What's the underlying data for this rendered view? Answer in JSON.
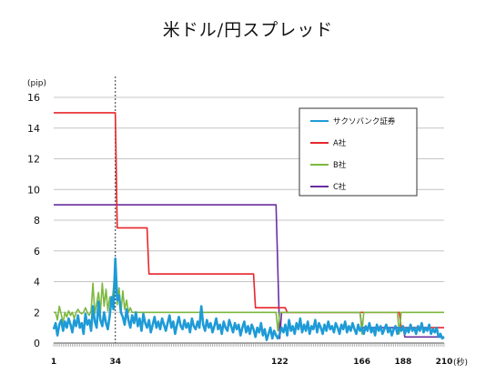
{
  "chart_data": {
    "type": "line",
    "title": "米ドル/円スプレッド",
    "ylabel": "(pip)",
    "xlabel": "(秒)",
    "ylim": [
      0,
      16
    ],
    "xlim": [
      1,
      210
    ],
    "yticks": [
      0,
      2,
      4,
      6,
      8,
      10,
      12,
      14,
      16
    ],
    "xticks": [
      1,
      34,
      122,
      166,
      188,
      210
    ],
    "marker_line_x": 34,
    "grid": true,
    "legend_position": "top-right",
    "series": [
      {
        "name": "サクソバンク証券",
        "color": "#1e9bd7",
        "points": [
          [
            1,
            0.9
          ],
          [
            2,
            1.3
          ],
          [
            3,
            0.5
          ],
          [
            4,
            1.2
          ],
          [
            5,
            1.5
          ],
          [
            6,
            0.8
          ],
          [
            7,
            1.4
          ],
          [
            8,
            1.0
          ],
          [
            9,
            1.6
          ],
          [
            10,
            1.2
          ],
          [
            11,
            0.7
          ],
          [
            12,
            1.5
          ],
          [
            13,
            1.1
          ],
          [
            14,
            1.8
          ],
          [
            15,
            1.0
          ],
          [
            16,
            1.3
          ],
          [
            17,
            0.6
          ],
          [
            18,
            1.9
          ],
          [
            19,
            1.2
          ],
          [
            20,
            1.5
          ],
          [
            21,
            0.8
          ],
          [
            22,
            2.4
          ],
          [
            23,
            1.4
          ],
          [
            24,
            1.0
          ],
          [
            25,
            2.7
          ],
          [
            26,
            1.5
          ],
          [
            27,
            1.1
          ],
          [
            28,
            2.0
          ],
          [
            29,
            1.3
          ],
          [
            30,
            0.9
          ],
          [
            31,
            1.8
          ],
          [
            32,
            3.0
          ],
          [
            33,
            2.2
          ],
          [
            34,
            5.5
          ],
          [
            35,
            2.8
          ],
          [
            36,
            3.1
          ],
          [
            37,
            2.0
          ],
          [
            38,
            1.7
          ],
          [
            39,
            1.2
          ],
          [
            40,
            2.2
          ],
          [
            41,
            1.5
          ],
          [
            42,
            1.0
          ],
          [
            43,
            1.8
          ],
          [
            44,
            1.3
          ],
          [
            45,
            2.0
          ],
          [
            46,
            1.1
          ],
          [
            47,
            1.6
          ],
          [
            48,
            0.8
          ],
          [
            49,
            1.9
          ],
          [
            50,
            1.3
          ],
          [
            51,
            1.0
          ],
          [
            52,
            1.5
          ],
          [
            53,
            0.7
          ],
          [
            54,
            1.2
          ],
          [
            55,
            1.7
          ],
          [
            56,
            1.0
          ],
          [
            57,
            1.4
          ],
          [
            58,
            0.9
          ],
          [
            59,
            1.6
          ],
          [
            60,
            1.2
          ],
          [
            61,
            0.8
          ],
          [
            62,
            1.3
          ],
          [
            63,
            1.8
          ],
          [
            64,
            1.0
          ],
          [
            65,
            1.4
          ],
          [
            66,
            0.6
          ],
          [
            67,
            1.2
          ],
          [
            68,
            1.7
          ],
          [
            69,
            1.1
          ],
          [
            70,
            0.9
          ],
          [
            71,
            1.5
          ],
          [
            72,
            1.0
          ],
          [
            73,
            1.3
          ],
          [
            74,
            0.7
          ],
          [
            75,
            1.6
          ],
          [
            76,
            1.1
          ],
          [
            77,
            0.9
          ],
          [
            78,
            1.4
          ],
          [
            79,
            1.0
          ],
          [
            80,
            2.4
          ],
          [
            81,
            1.2
          ],
          [
            82,
            0.8
          ],
          [
            83,
            1.5
          ],
          [
            84,
            1.0
          ],
          [
            85,
            1.3
          ],
          [
            86,
            0.7
          ],
          [
            87,
            1.1
          ],
          [
            88,
            1.6
          ],
          [
            89,
            0.9
          ],
          [
            90,
            1.2
          ],
          [
            91,
            0.6
          ],
          [
            92,
            1.4
          ],
          [
            93,
            1.0
          ],
          [
            94,
            0.8
          ],
          [
            95,
            1.5
          ],
          [
            96,
            1.1
          ],
          [
            97,
            0.7
          ],
          [
            98,
            1.3
          ],
          [
            99,
            0.9
          ],
          [
            100,
            1.2
          ],
          [
            101,
            0.5
          ],
          [
            102,
            1.0
          ],
          [
            103,
            1.4
          ],
          [
            104,
            0.7
          ],
          [
            105,
            1.1
          ],
          [
            106,
            0.6
          ],
          [
            107,
            1.2
          ],
          [
            108,
            0.9
          ],
          [
            109,
            0.4
          ],
          [
            110,
            1.0
          ],
          [
            111,
            0.7
          ],
          [
            112,
            1.3
          ],
          [
            113,
            0.5
          ],
          [
            114,
            0.9
          ],
          [
            115,
            0.2
          ],
          [
            116,
            0.6
          ],
          [
            117,
            1.0
          ],
          [
            118,
            0.3
          ],
          [
            119,
            0.8
          ],
          [
            120,
            0.5
          ],
          [
            121,
            0.3
          ],
          [
            122,
            0.6
          ],
          [
            123,
            1.0
          ],
          [
            124,
            0.7
          ],
          [
            125,
            1.2
          ],
          [
            126,
            0.5
          ],
          [
            127,
            1.5
          ],
          [
            128,
            0.8
          ],
          [
            129,
            1.1
          ],
          [
            130,
            0.6
          ],
          [
            131,
            1.3
          ],
          [
            132,
            0.9
          ],
          [
            133,
            1.6
          ],
          [
            134,
            0.7
          ],
          [
            135,
            1.2
          ],
          [
            136,
            0.8
          ],
          [
            137,
            1.4
          ],
          [
            138,
            0.6
          ],
          [
            139,
            1.1
          ],
          [
            140,
            0.9
          ],
          [
            141,
            1.5
          ],
          [
            142,
            0.7
          ],
          [
            143,
            1.3
          ],
          [
            144,
            1.0
          ],
          [
            145,
            0.6
          ],
          [
            146,
            1.2
          ],
          [
            147,
            0.8
          ],
          [
            148,
            1.4
          ],
          [
            149,
            0.9
          ],
          [
            150,
            1.1
          ],
          [
            151,
            0.7
          ],
          [
            152,
            1.3
          ],
          [
            153,
            1.0
          ],
          [
            154,
            0.6
          ],
          [
            155,
            1.2
          ],
          [
            156,
            0.9
          ],
          [
            157,
            1.4
          ],
          [
            158,
            0.7
          ],
          [
            159,
            1.1
          ],
          [
            160,
            0.8
          ],
          [
            161,
            1.3
          ],
          [
            162,
            0.9
          ],
          [
            163,
            0.6
          ],
          [
            164,
            1.2
          ],
          [
            165,
            0.8
          ],
          [
            166,
            1.0
          ],
          [
            167,
            0.6
          ],
          [
            168,
            1.1
          ],
          [
            169,
            0.8
          ],
          [
            170,
            1.3
          ],
          [
            171,
            0.7
          ],
          [
            172,
            1.0
          ],
          [
            173,
            0.5
          ],
          [
            174,
            1.2
          ],
          [
            175,
            0.8
          ],
          [
            176,
            1.1
          ],
          [
            177,
            0.6
          ],
          [
            178,
            0.9
          ],
          [
            179,
            1.2
          ],
          [
            180,
            0.7
          ],
          [
            181,
            1.0
          ],
          [
            182,
            0.5
          ],
          [
            183,
            0.9
          ],
          [
            184,
            1.1
          ],
          [
            185,
            0.6
          ],
          [
            186,
            1.0
          ],
          [
            187,
            0.8
          ],
          [
            188,
            1.1
          ],
          [
            189,
            0.6
          ],
          [
            190,
            1.0
          ],
          [
            191,
            0.7
          ],
          [
            192,
            1.2
          ],
          [
            193,
            0.8
          ],
          [
            194,
            1.0
          ],
          [
            195,
            0.6
          ],
          [
            196,
            1.1
          ],
          [
            197,
            0.8
          ],
          [
            198,
            1.3
          ],
          [
            199,
            0.7
          ],
          [
            200,
            1.0
          ],
          [
            201,
            0.8
          ],
          [
            202,
            1.2
          ],
          [
            203,
            0.6
          ],
          [
            204,
            0.9
          ],
          [
            205,
            0.7
          ],
          [
            206,
            1.0
          ],
          [
            207,
            0.4
          ],
          [
            208,
            0.6
          ],
          [
            209,
            0.3
          ],
          [
            210,
            0.4
          ]
        ]
      },
      {
        "name": "A社",
        "color": "#e8262b",
        "points": [
          [
            1,
            15
          ],
          [
            34,
            15
          ],
          [
            35,
            7.5
          ],
          [
            51,
            7.5
          ],
          [
            52,
            4.5
          ],
          [
            108,
            4.5
          ],
          [
            109,
            2.3
          ],
          [
            125,
            2.3
          ],
          [
            126,
            2
          ],
          [
            186,
            2
          ],
          [
            187,
            1
          ],
          [
            210,
            1
          ]
        ]
      },
      {
        "name": "B社",
        "color": "#7cb83e",
        "points": [
          [
            1,
            2
          ],
          [
            2,
            2
          ],
          [
            3,
            1.5
          ],
          [
            4,
            2.4
          ],
          [
            5,
            1.9
          ],
          [
            6,
            1.3
          ],
          [
            7,
            2.0
          ],
          [
            8,
            1.7
          ],
          [
            9,
            2.1
          ],
          [
            10,
            1.8
          ],
          [
            11,
            2.0
          ],
          [
            12,
            1.6
          ],
          [
            13,
            2.0
          ],
          [
            14,
            2.2
          ],
          [
            15,
            2.0
          ],
          [
            16,
            1.9
          ],
          [
            17,
            2.0
          ],
          [
            18,
            2.3
          ],
          [
            19,
            2.0
          ],
          [
            20,
            1.8
          ],
          [
            21,
            2.1
          ],
          [
            22,
            3.9
          ],
          [
            23,
            1.9
          ],
          [
            24,
            2.6
          ],
          [
            25,
            3.3
          ],
          [
            26,
            2.0
          ],
          [
            27,
            3.9
          ],
          [
            28,
            2.4
          ],
          [
            29,
            3.5
          ],
          [
            30,
            2.1
          ],
          [
            31,
            3.0
          ],
          [
            32,
            2.4
          ],
          [
            33,
            3.6
          ],
          [
            34,
            5.3
          ],
          [
            35,
            2.5
          ],
          [
            36,
            3.6
          ],
          [
            37,
            2.0
          ],
          [
            38,
            3.4
          ],
          [
            39,
            2.2
          ],
          [
            40,
            2.8
          ],
          [
            41,
            2.0
          ],
          [
            42,
            2.3
          ],
          [
            43,
            2.0
          ],
          [
            50,
            2.0
          ],
          [
            60,
            2.0
          ],
          [
            70,
            2.0
          ],
          [
            80,
            2.0
          ],
          [
            90,
            2.0
          ],
          [
            100,
            2.0
          ],
          [
            110,
            2.0
          ],
          [
            120,
            2.0
          ],
          [
            121,
            0.8
          ],
          [
            122,
            2.0
          ],
          [
            130,
            2.0
          ],
          [
            140,
            2.0
          ],
          [
            150,
            2.0
          ],
          [
            160,
            2.0
          ],
          [
            165,
            2.0
          ],
          [
            166,
            0.6
          ],
          [
            167,
            2.0
          ],
          [
            170,
            2.0
          ],
          [
            180,
            2.0
          ],
          [
            185,
            2.0
          ],
          [
            186,
            0.6
          ],
          [
            187,
            2.0
          ],
          [
            195,
            2.0
          ],
          [
            200,
            2.0
          ],
          [
            205,
            2.0
          ],
          [
            210,
            2.0
          ]
        ]
      },
      {
        "name": "C社",
        "color": "#6a2fa0",
        "points": [
          [
            1,
            9
          ],
          [
            120,
            9
          ],
          [
            122,
            0.3
          ],
          [
            123,
            2
          ],
          [
            165,
            2
          ],
          [
            166,
            1
          ],
          [
            188,
            1
          ],
          [
            189,
            0.4
          ],
          [
            210,
            0.4
          ]
        ]
      }
    ]
  }
}
